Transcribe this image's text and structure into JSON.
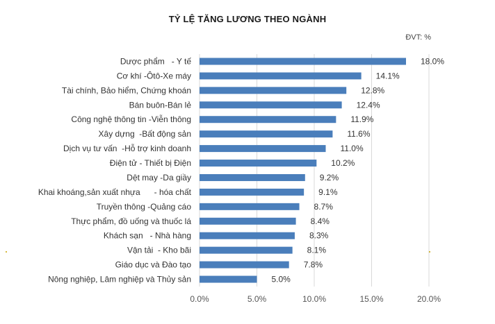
{
  "chart_data": {
    "type": "bar",
    "orientation": "horizontal",
    "title": "TỶ LỆ TĂNG LƯƠNG THEO NGÀNH",
    "unit_label": "ĐVT: %",
    "categories": [
      "Dược phẩm   - Y tế",
      "Cơ khí -Ôtô-Xe máy",
      "Tài chính, Bảo hiểm, Chứng khoán",
      "Bán buôn-Bán lẻ",
      "Công nghệ thông tin -Viễn thông",
      "Xây dựng  -Bất động sản",
      "Dịch vụ tư vấn  -Hỗ trợ kinh doanh",
      "Điện tử - Thiết bị Điện",
      "Dệt may -Da giầy",
      "Khai khoáng,sản xuất nhựa      - hóa chất",
      "Truyền thông -Quảng cáo",
      "Thực phẩm, đồ uống và thuốc lá",
      "Khách sạn   - Nhà hàng",
      "Vận tải  - Kho bãi",
      "Giáo dục và Đào tạo",
      "Nông nghiệp, Lâm nghiệp và Thủy sản"
    ],
    "values": [
      18.0,
      14.1,
      12.8,
      12.4,
      11.9,
      11.6,
      11.0,
      10.2,
      9.2,
      9.1,
      8.7,
      8.4,
      8.3,
      8.1,
      7.8,
      5.0
    ],
    "data_labels": [
      "18.0%",
      "14.1%",
      "12.8%",
      "12.4%",
      "11.9%",
      "11.6%",
      "11.0%",
      "10.2%",
      "9.2%",
      "9.1%",
      "8.7%",
      "8.4%",
      "8.3%",
      "8.1%",
      "7.8%",
      "5.0%"
    ],
    "x_ticks": [
      "0.0%",
      "5.0%",
      "10.0%",
      "15.0%",
      "20.0%"
    ],
    "xlim": [
      0,
      20
    ],
    "grid": true,
    "legend": "none",
    "bar_color": "#4a7ebb"
  }
}
